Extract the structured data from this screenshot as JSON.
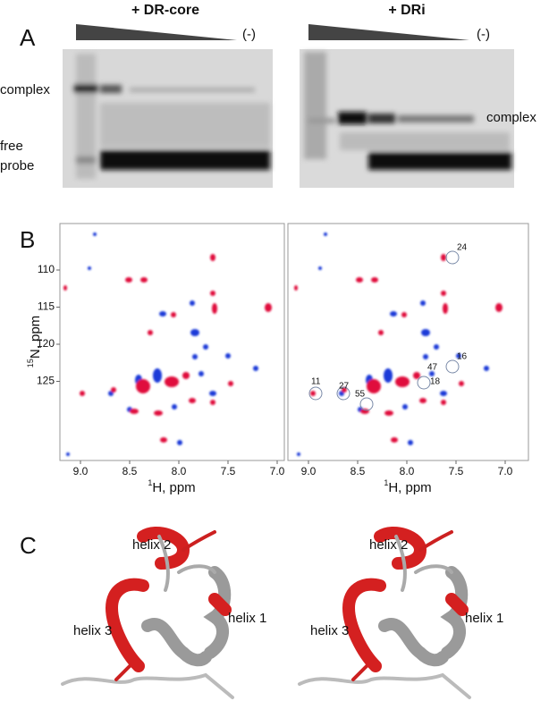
{
  "panel_a": {
    "label": "A",
    "gels": [
      {
        "title": "+ DR-core",
        "control": "(-)"
      },
      {
        "title": "+ DRi",
        "control": "(-)"
      }
    ],
    "left_labels": [
      "complex",
      "free",
      "probe"
    ],
    "right_label": "complex"
  },
  "panel_b": {
    "label": "B",
    "x_axis_superscript": "1",
    "x_axis_label": "H, ppm",
    "y_axis_superscript": "15",
    "y_axis_label": "N, ppm",
    "x_ticks": [
      "9.0",
      "8.5",
      "8.0",
      "7.5",
      "7.0"
    ],
    "y_ticks": [
      "110",
      "115",
      "120",
      "125"
    ],
    "peak_labels": [
      "24",
      "16",
      "47",
      "18",
      "11",
      "27",
      "55"
    ]
  },
  "panel_c": {
    "label": "C",
    "helix_labels": [
      "helix 2",
      "helix 1",
      "helix 3"
    ]
  }
}
